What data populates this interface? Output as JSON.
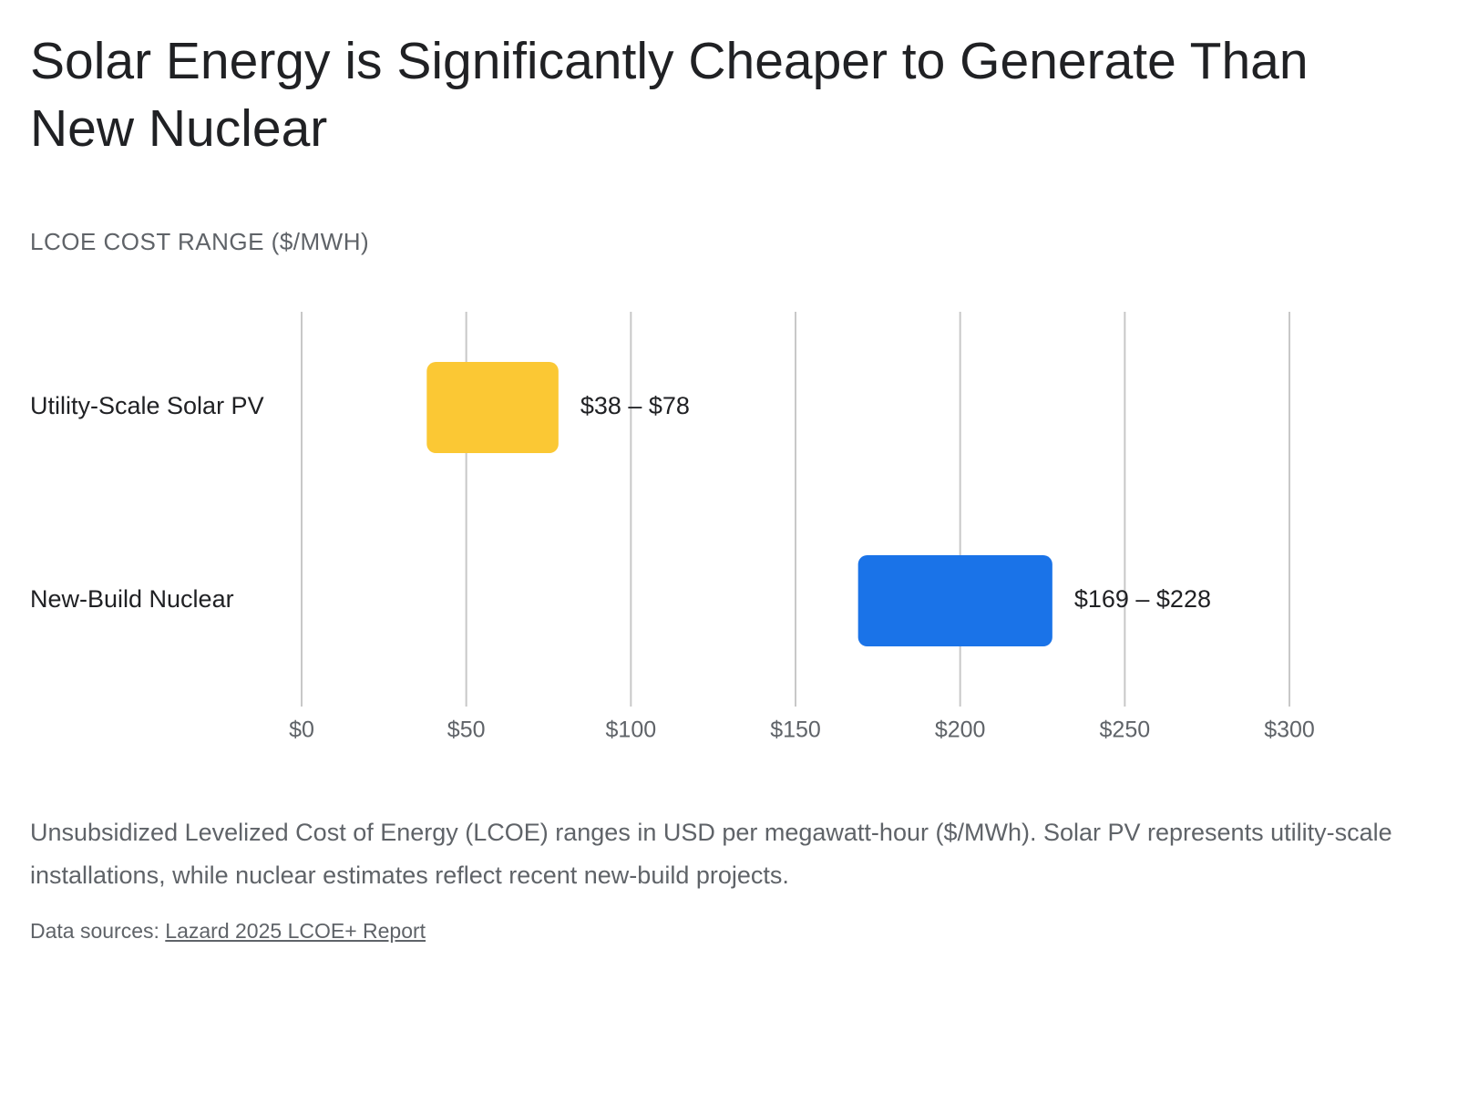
{
  "chart_data": {
    "type": "range-bar",
    "title": "Solar Energy is Significantly Cheaper to Generate Than New Nuclear",
    "axis_label": "LCOE COST RANGE ($/MWH)",
    "categories": [
      "Utility-Scale Solar PV",
      "New-Build Nuclear"
    ],
    "low": [
      38,
      169
    ],
    "high": [
      78,
      228
    ],
    "value_labels": [
      "$38 – $78",
      "$169 – $228"
    ],
    "colors": [
      "#fbc834",
      "#1a73e8"
    ],
    "xlim": [
      0,
      300
    ],
    "xticks": [
      {
        "value": 0,
        "label": "$0"
      },
      {
        "value": 50,
        "label": "$50"
      },
      {
        "value": 100,
        "label": "$100"
      },
      {
        "value": 150,
        "label": "$150"
      },
      {
        "value": 200,
        "label": "$200"
      },
      {
        "value": 250,
        "label": "$250"
      },
      {
        "value": 300,
        "label": "$300"
      }
    ],
    "grid": true,
    "caption": "Unsubsidized Levelized Cost of Energy (LCOE) ranges in USD per megawatt-hour ($/MWh). Solar PV represents utility-scale installations, while nuclear estimates reflect recent new-build projects.",
    "source_prefix": "Data sources:",
    "source_link": "Lazard 2025 LCOE+ Report"
  }
}
